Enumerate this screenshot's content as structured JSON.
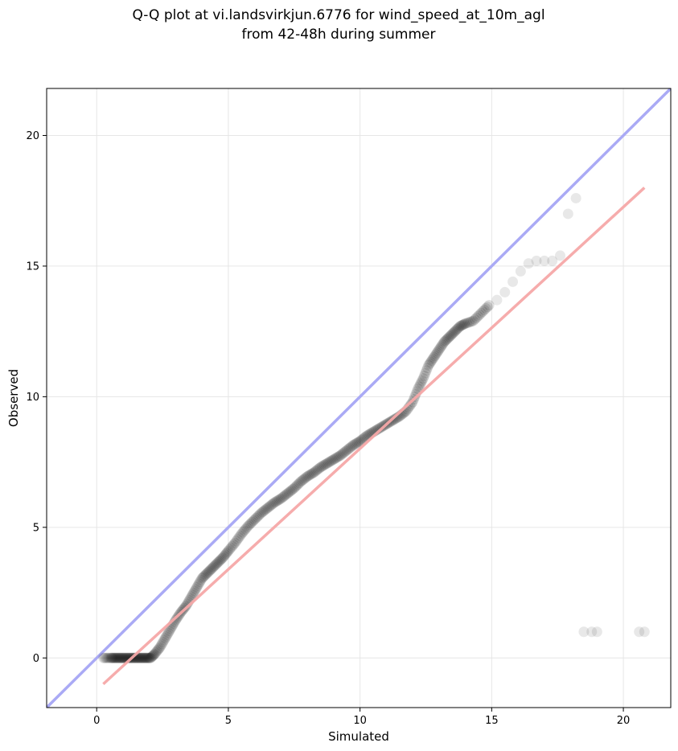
{
  "chart_data": {
    "type": "scatter",
    "title": [
      "Q-Q plot at vi.landsvirkjun.6776 for wind_speed_at_10m_agl",
      "from 42-48h during summer"
    ],
    "xlabel": "Simulated",
    "ylabel": "Observed",
    "xlim": [
      -1.9,
      21.8
    ],
    "ylim": [
      -1.9,
      21.8
    ],
    "xticks": [
      0,
      5,
      10,
      15,
      20
    ],
    "yticks": [
      0,
      5,
      10,
      15,
      20
    ],
    "xtick_labels": [
      "0",
      "5",
      "10",
      "15",
      "20"
    ],
    "ytick_labels": [
      "0",
      "5",
      "10",
      "15",
      "20"
    ],
    "grid": true,
    "reference_line": {
      "color": "#aaaaf5",
      "x": [
        -1.9,
        21.8
      ],
      "y": [
        -1.9,
        21.8
      ]
    },
    "fit_line": {
      "color": "#f5a8a8",
      "x": [
        0.25,
        20.8
      ],
      "y": [
        -1.0,
        18.0
      ]
    },
    "points": {
      "color": "#000000",
      "x": [
        0.25,
        0.4,
        0.55,
        0.7,
        0.85,
        1.0,
        1.15,
        1.3,
        1.45,
        1.6,
        1.75,
        1.9,
        2.05,
        2.2,
        2.4,
        2.6,
        2.8,
        3.0,
        3.2,
        3.4,
        3.6,
        3.8,
        4.0,
        4.2,
        4.4,
        4.6,
        4.8,
        5.0,
        5.25,
        5.5,
        5.75,
        6.0,
        6.25,
        6.5,
        6.75,
        7.0,
        7.25,
        7.5,
        7.75,
        8.0,
        8.25,
        8.5,
        8.75,
        9.0,
        9.25,
        9.5,
        9.75,
        10.0,
        10.25,
        10.5,
        10.75,
        11.0,
        11.25,
        11.5,
        11.75,
        12.0,
        12.2,
        12.4,
        12.6,
        12.8,
        13.0,
        13.2,
        13.4,
        13.6,
        13.8,
        14.0,
        14.3,
        14.6,
        14.9,
        15.2,
        15.5,
        15.8,
        16.1,
        16.4,
        16.7,
        17.0,
        17.3,
        17.6,
        17.9,
        18.2,
        18.5,
        18.8,
        19.0,
        20.6,
        20.8
      ],
      "y": [
        0.0,
        0.0,
        0.0,
        0.0,
        0.0,
        0.0,
        0.0,
        0.0,
        0.0,
        0.0,
        0.0,
        0.0,
        0.0,
        0.15,
        0.4,
        0.75,
        1.1,
        1.45,
        1.75,
        2.0,
        2.35,
        2.7,
        3.05,
        3.25,
        3.45,
        3.65,
        3.85,
        4.1,
        4.4,
        4.75,
        5.05,
        5.3,
        5.55,
        5.75,
        5.95,
        6.1,
        6.3,
        6.5,
        6.75,
        6.95,
        7.1,
        7.3,
        7.45,
        7.6,
        7.75,
        7.95,
        8.15,
        8.3,
        8.5,
        8.65,
        8.8,
        8.95,
        9.1,
        9.25,
        9.45,
        9.8,
        10.3,
        10.7,
        11.2,
        11.5,
        11.8,
        12.1,
        12.3,
        12.5,
        12.7,
        12.8,
        12.9,
        13.2,
        13.5,
        13.7,
        14.0,
        14.4,
        14.8,
        15.1,
        15.2,
        15.2,
        15.2,
        15.4,
        17.0,
        17.6,
        1,
        1,
        1,
        1,
        1
      ],
      "count": 85
    }
  }
}
